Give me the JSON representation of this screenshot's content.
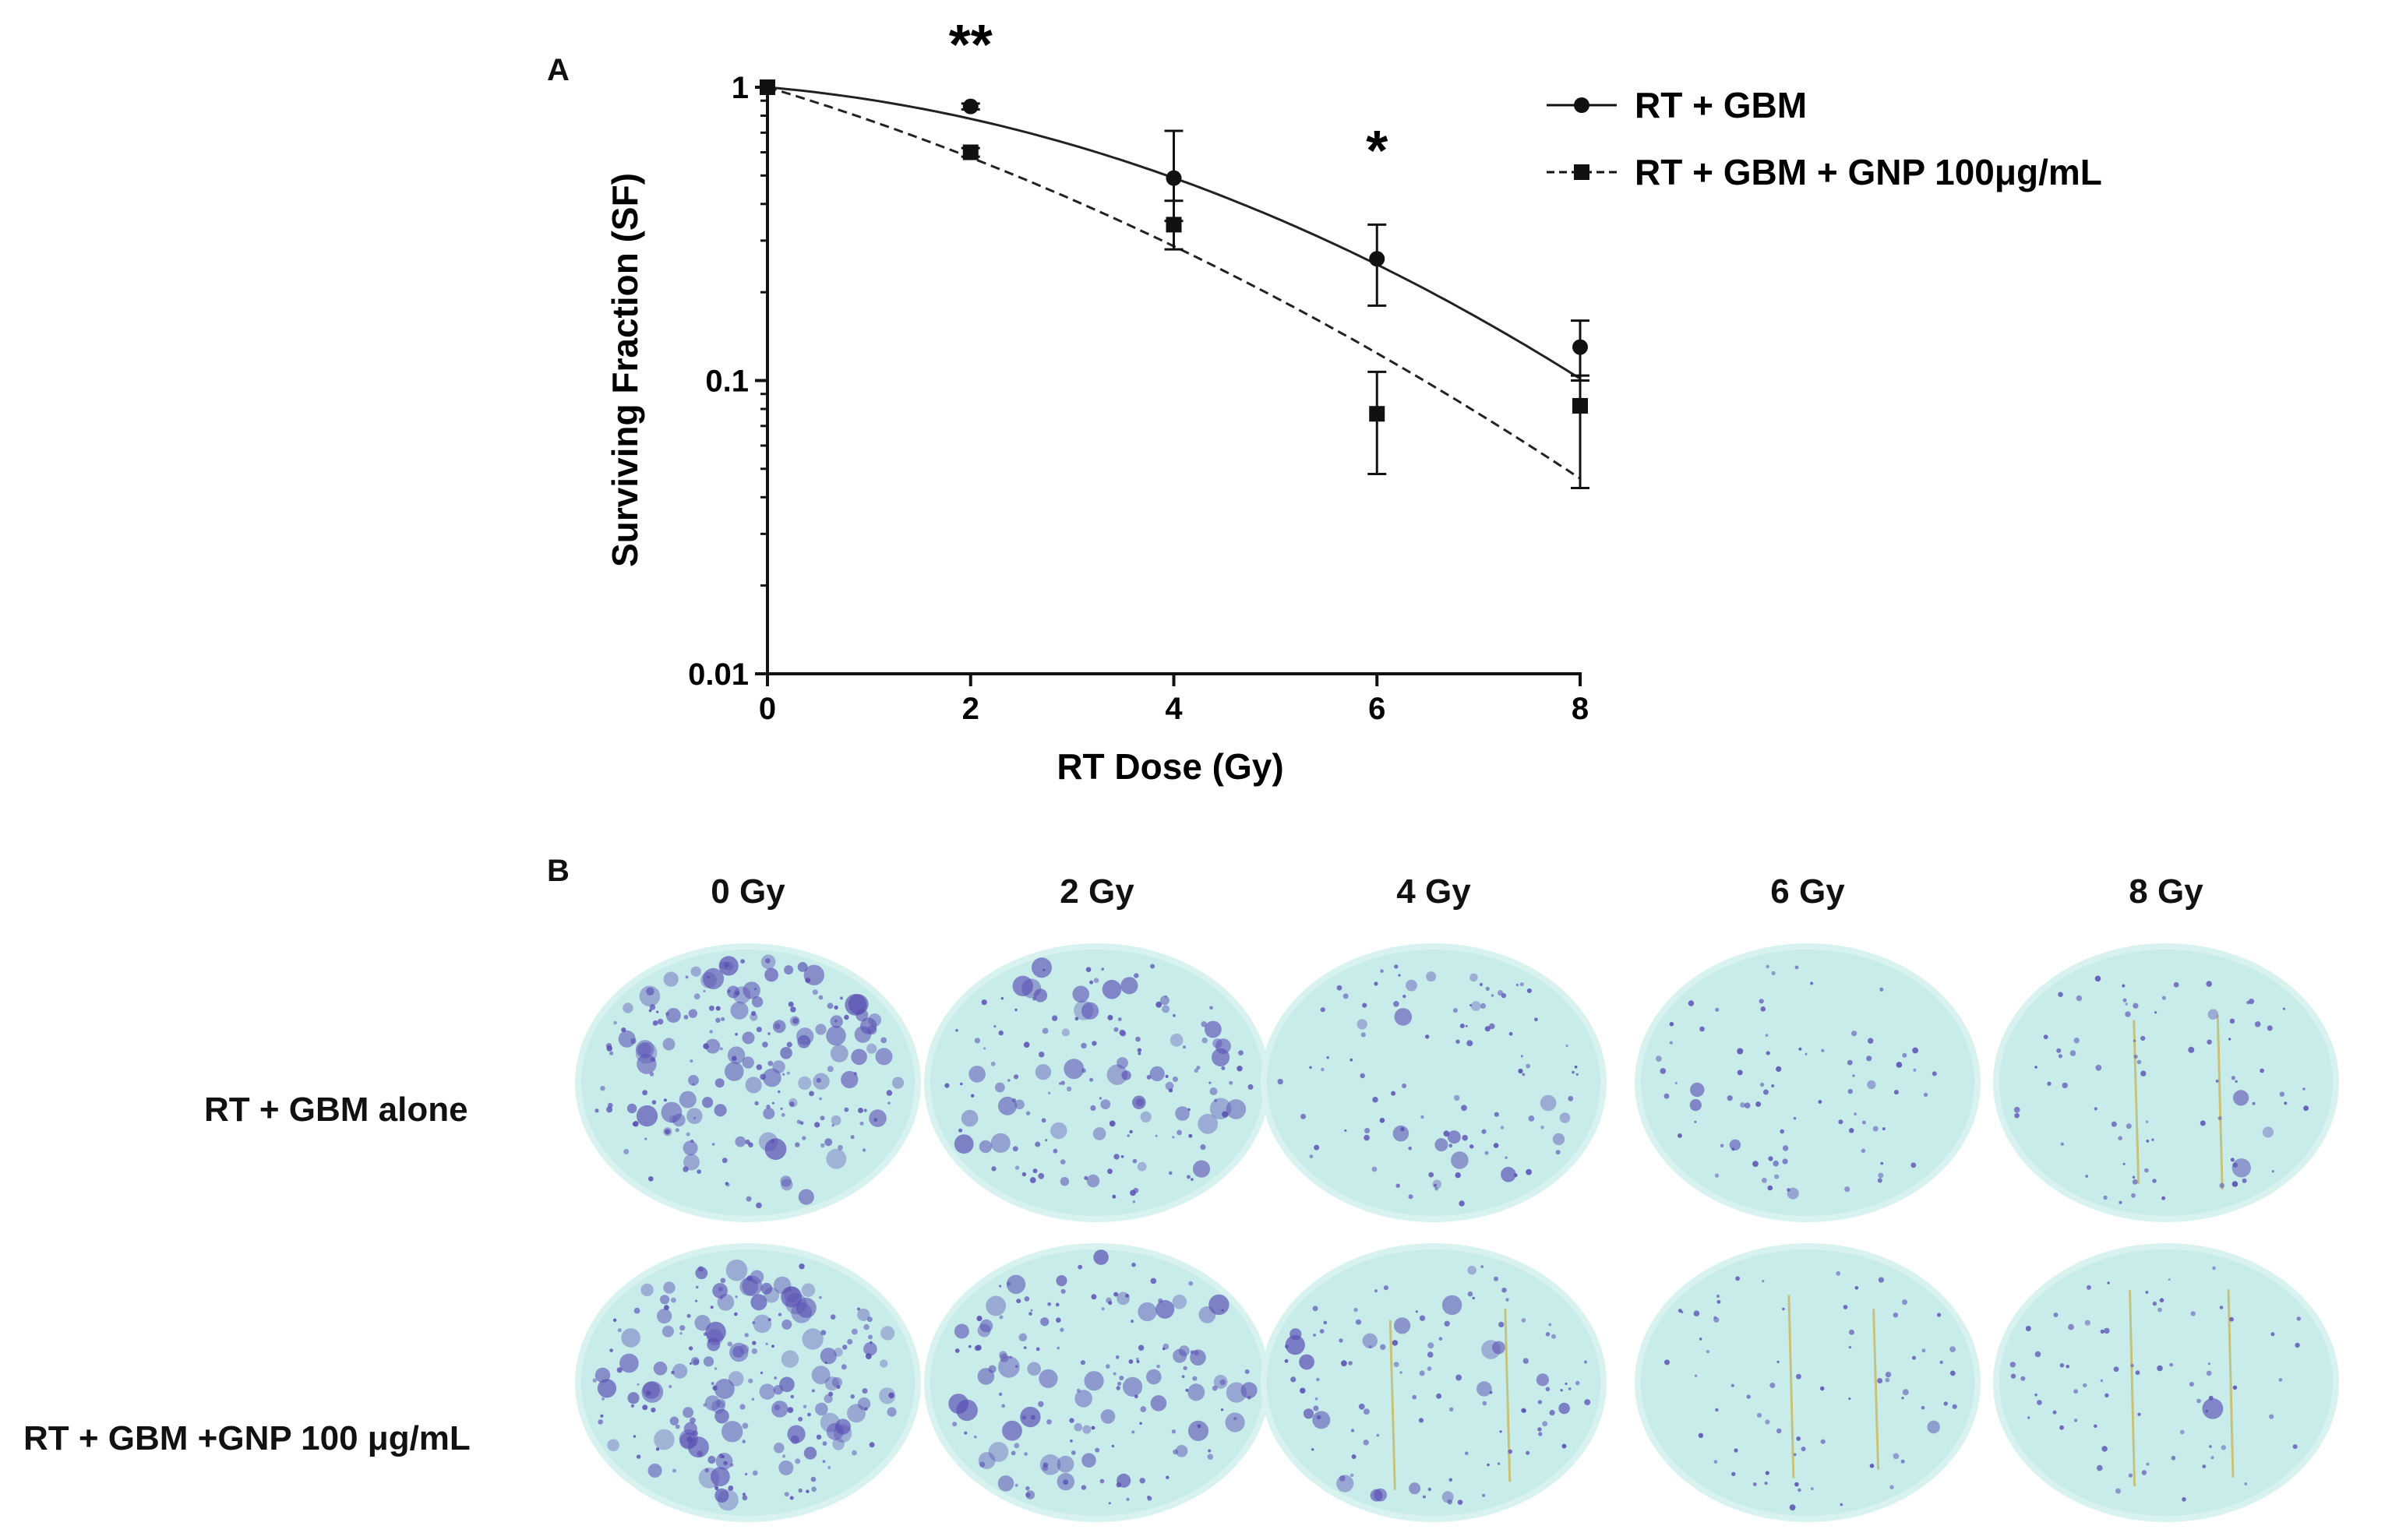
{
  "figure": {
    "panel_a_label": "A",
    "panel_b_label": "B"
  },
  "chart_data": {
    "type": "line",
    "yscale": "log",
    "title": "",
    "xlabel": "RT Dose (Gy)",
    "ylabel": "Surviving Fraction (SF)",
    "xlim": [
      0,
      8
    ],
    "ylim": [
      0.01,
      1
    ],
    "xticks": [
      "0",
      "2",
      "4",
      "6",
      "8"
    ],
    "yticks": [
      "0.01",
      "0.1",
      "1"
    ],
    "legend_position": "top-right",
    "series": [
      {
        "name": "RT + GBM",
        "marker": "circle",
        "line_style": "solid",
        "x": [
          0,
          2,
          4,
          6,
          8
        ],
        "y": [
          1.0,
          0.86,
          0.49,
          0.26,
          0.13
        ],
        "err_upper": [
          1.0,
          0.88,
          0.71,
          0.34,
          0.16
        ],
        "err_lower": [
          1.0,
          0.84,
          0.35,
          0.18,
          0.1
        ],
        "fit_alpha": 0.07,
        "fit_beta": 0.027
      },
      {
        "name": "RT  + GBM + GNP 100μg/mL",
        "marker": "square",
        "line_style": "dashed",
        "x": [
          0,
          2,
          4,
          6,
          8
        ],
        "y": [
          1.0,
          0.6,
          0.34,
          0.077,
          0.082
        ],
        "err_upper": [
          1.0,
          0.62,
          0.41,
          0.107,
          0.104
        ],
        "err_lower": [
          1.0,
          0.58,
          0.28,
          0.048,
          0.043
        ],
        "fit_alpha": 0.24,
        "fit_beta": 0.018
      }
    ],
    "annotations": [
      {
        "x": 2,
        "text": "**"
      },
      {
        "x": 6,
        "text": "*"
      }
    ]
  },
  "panel_b": {
    "columns": [
      "0 Gy",
      "2 Gy",
      "4 Gy",
      "6 Gy",
      "8 Gy"
    ],
    "rows": [
      {
        "label": "RT + GBM alone",
        "colony_density": [
          0.95,
          0.7,
          0.4,
          0.22,
          0.2
        ]
      },
      {
        "label": "RT + GBM +GNP 100 μg/mL",
        "colony_density": [
          1.0,
          0.75,
          0.45,
          0.12,
          0.12
        ]
      }
    ],
    "colors": {
      "plate": "#c7ecea",
      "plate_rim": "#d8f2f0",
      "colony": "#5a4fb3",
      "streak": "#c7b04a"
    }
  }
}
